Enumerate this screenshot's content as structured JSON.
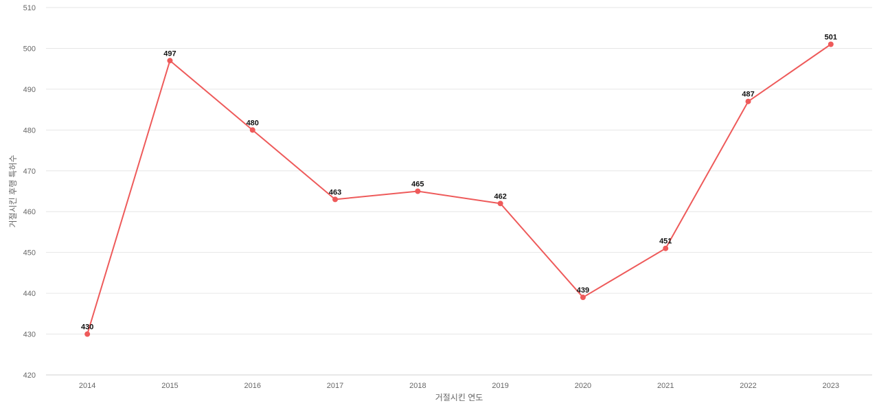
{
  "chart_data": {
    "type": "line",
    "title": "",
    "xlabel": "거절시킨 연도",
    "ylabel": "거절시킨 후행 특허수",
    "categories": [
      "2014",
      "2015",
      "2016",
      "2017",
      "2018",
      "2019",
      "2020",
      "2021",
      "2022",
      "2023"
    ],
    "series": [
      {
        "values": [
          430,
          497,
          480,
          463,
          465,
          462,
          439,
          451,
          487,
          501
        ],
        "color": "#ee5a5a"
      }
    ],
    "ylim": [
      420,
      510
    ],
    "yticks": [
      420,
      430,
      440,
      450,
      460,
      470,
      480,
      490,
      500,
      510
    ],
    "grid": true,
    "legend": "none",
    "data_labels": true
  }
}
